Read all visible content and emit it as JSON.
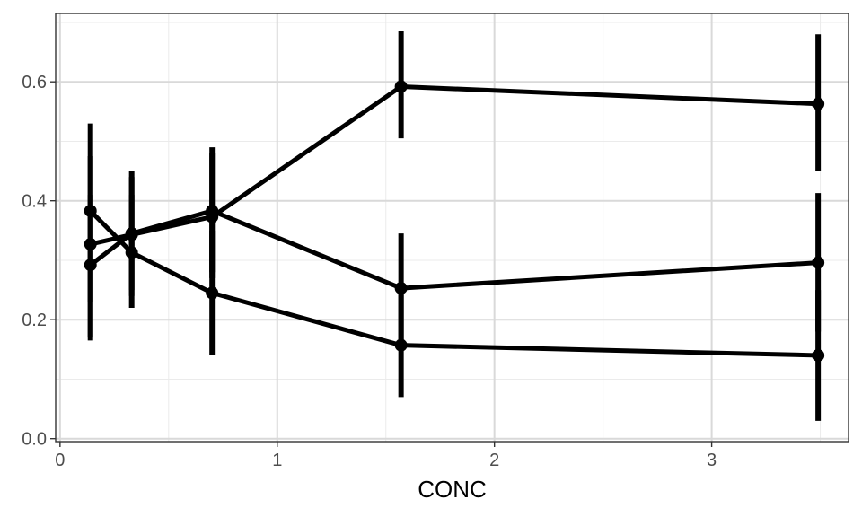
{
  "chart_data": {
    "type": "line",
    "title": "",
    "xlabel": "CONC",
    "ylabel": "",
    "xlim": [
      -0.02,
      3.63
    ],
    "ylim": [
      -0.005,
      0.715
    ],
    "x_ticks": [
      0,
      1,
      2,
      3
    ],
    "x_tick_labels": [
      "0",
      "1",
      "2",
      "3"
    ],
    "y_ticks": [
      0.0,
      0.2,
      0.4,
      0.6
    ],
    "y_tick_labels": [
      "0.0",
      "0.2",
      "0.4",
      "0.6"
    ],
    "grid": true,
    "legend": "none",
    "x": [
      0.14,
      0.33,
      0.7,
      1.57,
      3.49
    ],
    "series": [
      {
        "values": [
          0.383,
          0.313,
          0.245,
          0.157,
          0.14
        ],
        "lower": [
          0.23,
          0.22,
          0.14,
          0.07,
          0.03
        ],
        "upper": [
          0.53,
          0.41,
          0.35,
          0.25,
          0.25
        ]
      },
      {
        "values": [
          0.292,
          0.345,
          0.383,
          0.253,
          0.296
        ],
        "lower": [
          0.17,
          0.25,
          0.28,
          0.16,
          0.18
        ],
        "upper": [
          0.41,
          0.45,
          0.49,
          0.345,
          0.413
        ]
      },
      {
        "values": [
          0.327,
          0.343,
          0.373,
          0.592,
          0.563
        ],
        "lower": [
          0.165,
          0.24,
          0.27,
          0.505,
          0.45
        ],
        "upper": [
          0.475,
          0.44,
          0.48,
          0.685,
          0.68
        ]
      }
    ],
    "colors": {
      "line": "#000000",
      "panel_border": "#333333",
      "grid_major": "#d9d9d9",
      "grid_minor": "#ebebeb"
    }
  }
}
